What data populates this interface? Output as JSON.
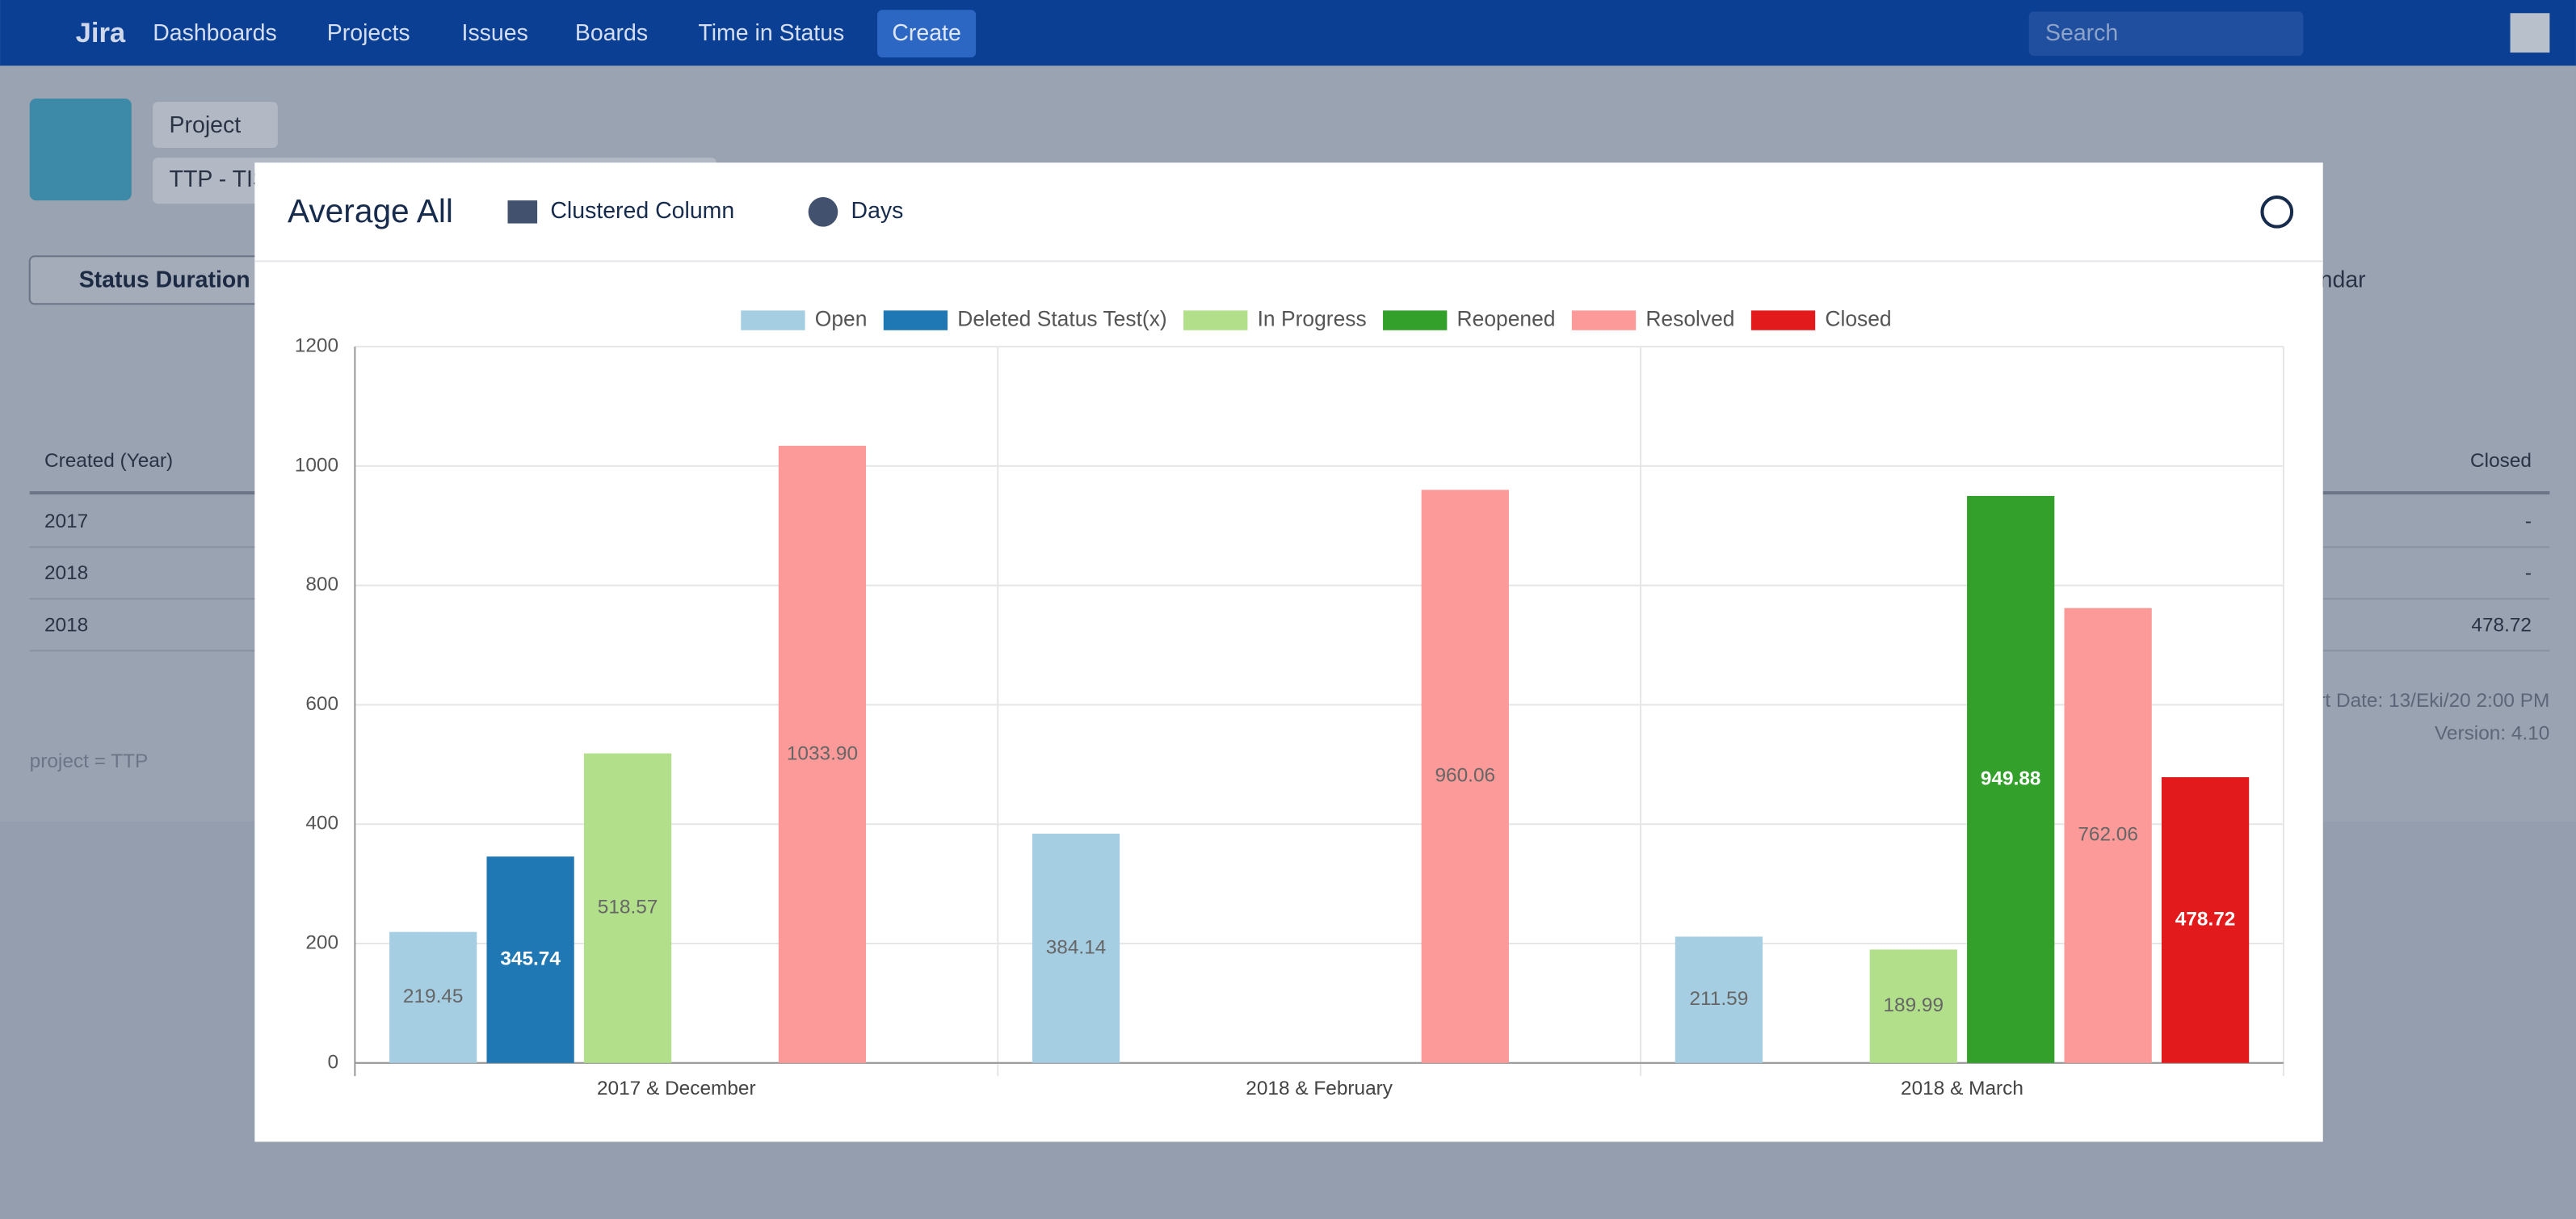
{
  "page": {
    "nav": {
      "logo": "Jira",
      "items": [
        "Dashboards",
        "Projects",
        "Issues",
        "Boards",
        "Time in Status"
      ],
      "create": "Create",
      "search": "Search"
    },
    "project": {
      "button": "Project",
      "name": "TTP - TIS"
    },
    "toolbar": {
      "status": "Status Duration",
      "calendar": "ndar"
    },
    "table": {
      "headers": [
        "Created (Year)",
        "Closed"
      ],
      "rows": [
        [
          "2017",
          "-"
        ],
        [
          "2018",
          "-"
        ],
        [
          "2018",
          "478.72"
        ]
      ]
    },
    "footer": {
      "report_date": "rt Date: 13/Eki/20 2:00 PM",
      "version": "Version: 4.10",
      "query": "project = TTP"
    },
    "modal": {
      "title": "Average All",
      "chart_type": "Clustered Column",
      "unit": "Days"
    }
  },
  "chart_data": {
    "type": "bar",
    "categories": [
      "2017 & December",
      "2018 & February",
      "2018 & March"
    ],
    "series": [
      {
        "name": "Open",
        "color": "#a6cee3",
        "values": [
          219.45,
          384.14,
          211.59
        ]
      },
      {
        "name": "Deleted Status Test(x)",
        "color": "#1f78b4",
        "values": [
          345.74,
          null,
          null
        ]
      },
      {
        "name": "In Progress",
        "color": "#b2df8a",
        "values": [
          518.57,
          null,
          189.99
        ]
      },
      {
        "name": "Reopened",
        "color": "#33a02c",
        "values": [
          null,
          null,
          949.88
        ]
      },
      {
        "name": "Resolved",
        "color": "#fb9a99",
        "values": [
          1033.9,
          960.06,
          762.06
        ],
        "value_labels": [
          "1033.90",
          "960.06",
          "762.06"
        ]
      },
      {
        "name": "Closed",
        "color": "#e31a1c",
        "values": [
          null,
          null,
          478.72
        ]
      }
    ],
    "ylim": [
      0,
      1200
    ],
    "yticks": [
      0,
      200,
      400,
      600,
      800,
      1000,
      1200
    ],
    "grid": true,
    "legend": "top"
  }
}
